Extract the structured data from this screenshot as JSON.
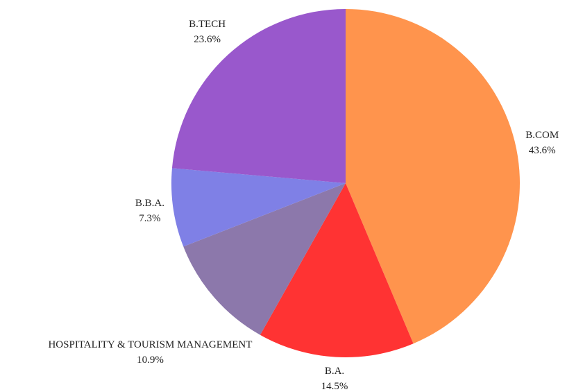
{
  "chart_data": {
    "type": "pie",
    "categories": [
      "B.COM",
      "B.A.",
      "HOSPITALITY & TOURISM MANAGEMENT",
      "B.B.A.",
      "B.TECH"
    ],
    "values": [
      43.6,
      14.5,
      10.9,
      7.3,
      23.6
    ],
    "value_labels": [
      "43.6%",
      "14.5%",
      "10.9%",
      "7.3%",
      "23.6%"
    ],
    "colors": [
      "#ff944d",
      "#ff3333",
      "#8c78ab",
      "#7f80e6",
      "#9958cc"
    ]
  }
}
